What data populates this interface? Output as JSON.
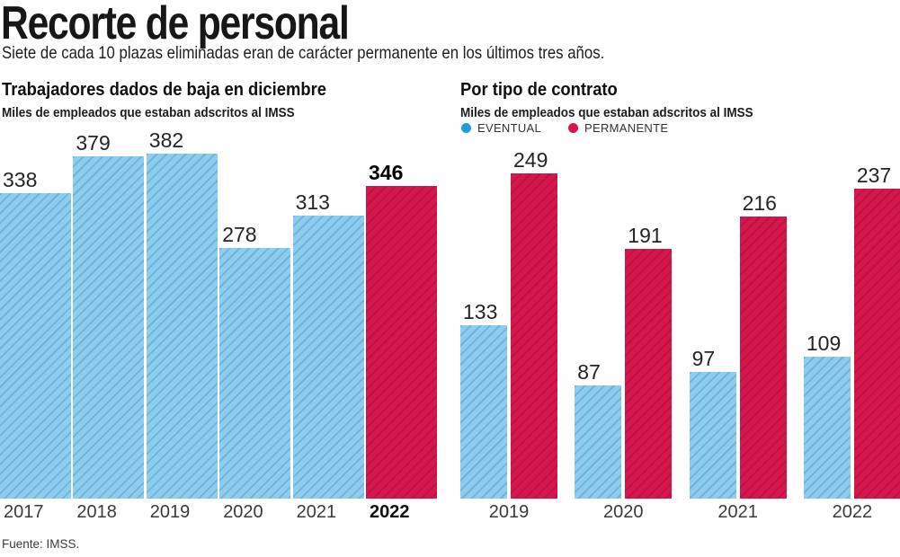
{
  "header": {
    "title": "Recorte de personal",
    "subtitle": "Siete de cada 10 plazas eliminadas eran de carácter permanente en los últimos tres años."
  },
  "source": "Fuente: IMSS.",
  "colors": {
    "blue_fill": "#8FCDEF",
    "blue_hatch": "#6FB4DC",
    "red_fill": "#D5174D",
    "red_hatch": "#BC1342",
    "legend_blue": "#219CD8",
    "legend_red": "#D5174D"
  },
  "chart_data": [
    {
      "type": "bar",
      "title": "Trabajadores dados de baja en diciembre",
      "subtitle": "Miles de empleados que estaban adscritos al IMSS",
      "categories": [
        "2017",
        "2018",
        "2019",
        "2020",
        "2021",
        "2022"
      ],
      "values": [
        338,
        379,
        382,
        278,
        313,
        346
      ],
      "highlight_category": "2022",
      "data_labels": true,
      "ylim": [
        0,
        382
      ],
      "grid": false,
      "axis_line": false
    },
    {
      "type": "bar",
      "title": "Por tipo de contrato",
      "subtitle": "Miles de empleados que estaban adscritos al IMSS",
      "categories": [
        "2019",
        "2020",
        "2021",
        "2022"
      ],
      "series": [
        {
          "name": "EVENTUAL",
          "color_key": "blue",
          "values": [
            133,
            87,
            97,
            109
          ]
        },
        {
          "name": "PERMANENTE",
          "color_key": "red",
          "values": [
            249,
            191,
            216,
            237
          ]
        }
      ],
      "data_labels": true,
      "ylim": [
        0,
        249
      ],
      "grid": false,
      "axis_line": false,
      "legend_position": "top"
    }
  ]
}
